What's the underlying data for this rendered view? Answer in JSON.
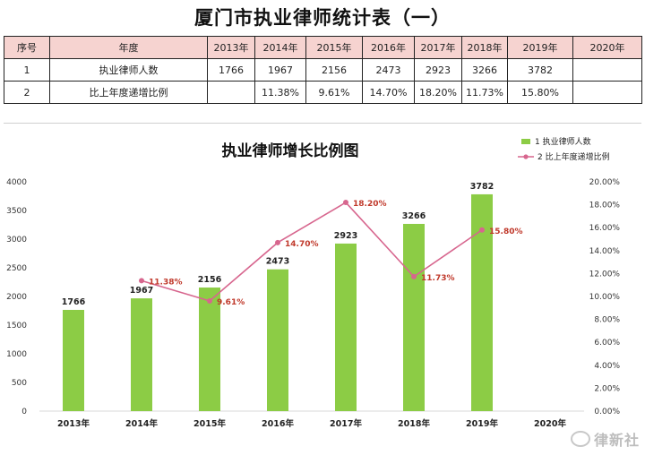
{
  "page": {
    "title": "厦门市执业律师统计表（一）"
  },
  "table": {
    "header": [
      "序号",
      "年度",
      "2013年",
      "2014年",
      "2015年",
      "2016年",
      "2017年",
      "2018年",
      "2019年",
      "2020年"
    ],
    "rows": [
      [
        "1",
        "执业律师人数",
        "1766",
        "1967",
        "2156",
        "2473",
        "2923",
        "3266",
        "3782",
        ""
      ],
      [
        "2",
        "比上年度递增比例",
        "",
        "11.38%",
        "9.61%",
        "14.70%",
        "18.20%",
        "11.73%",
        "15.80%",
        ""
      ]
    ]
  },
  "chart_data": {
    "type": "bar",
    "title": "执业律师增长比例图",
    "categories": [
      "2013年",
      "2014年",
      "2015年",
      "2016年",
      "2017年",
      "2018年",
      "2019年",
      "2020年"
    ],
    "series": [
      {
        "name": "1 执业律师人数",
        "type": "bar",
        "axis": "left",
        "color": "#8ccc45",
        "values": [
          1766,
          1967,
          2156,
          2473,
          2923,
          3266,
          3782,
          null
        ],
        "labels": [
          "1766",
          "1967",
          "2156",
          "2473",
          "2923",
          "3266",
          "3782",
          ""
        ]
      },
      {
        "name": "2 比上年度递增比例",
        "type": "line",
        "axis": "right",
        "color": "#d7668e",
        "values": [
          null,
          11.38,
          9.61,
          14.7,
          18.2,
          11.73,
          15.8,
          null
        ],
        "labels": [
          "",
          "11.38%",
          "9.61%",
          "14.70%",
          "18.20%",
          "11.73%",
          "15.80%",
          ""
        ]
      }
    ],
    "ylim_left": [
      0,
      4000
    ],
    "yticks_left": [
      "0",
      "500",
      "1000",
      "1500",
      "2000",
      "2500",
      "3000",
      "3500",
      "4000"
    ],
    "ylim_right": [
      0,
      20
    ],
    "yticks_right": [
      "0.00%",
      "2.00%",
      "4.00%",
      "6.00%",
      "8.00%",
      "10.00%",
      "12.00%",
      "14.00%",
      "16.00%",
      "18.00%",
      "20.00%"
    ],
    "line_label_color": "#c0392b",
    "grid": false,
    "legend_position": "top-right"
  },
  "watermark": {
    "text": "律新社"
  }
}
